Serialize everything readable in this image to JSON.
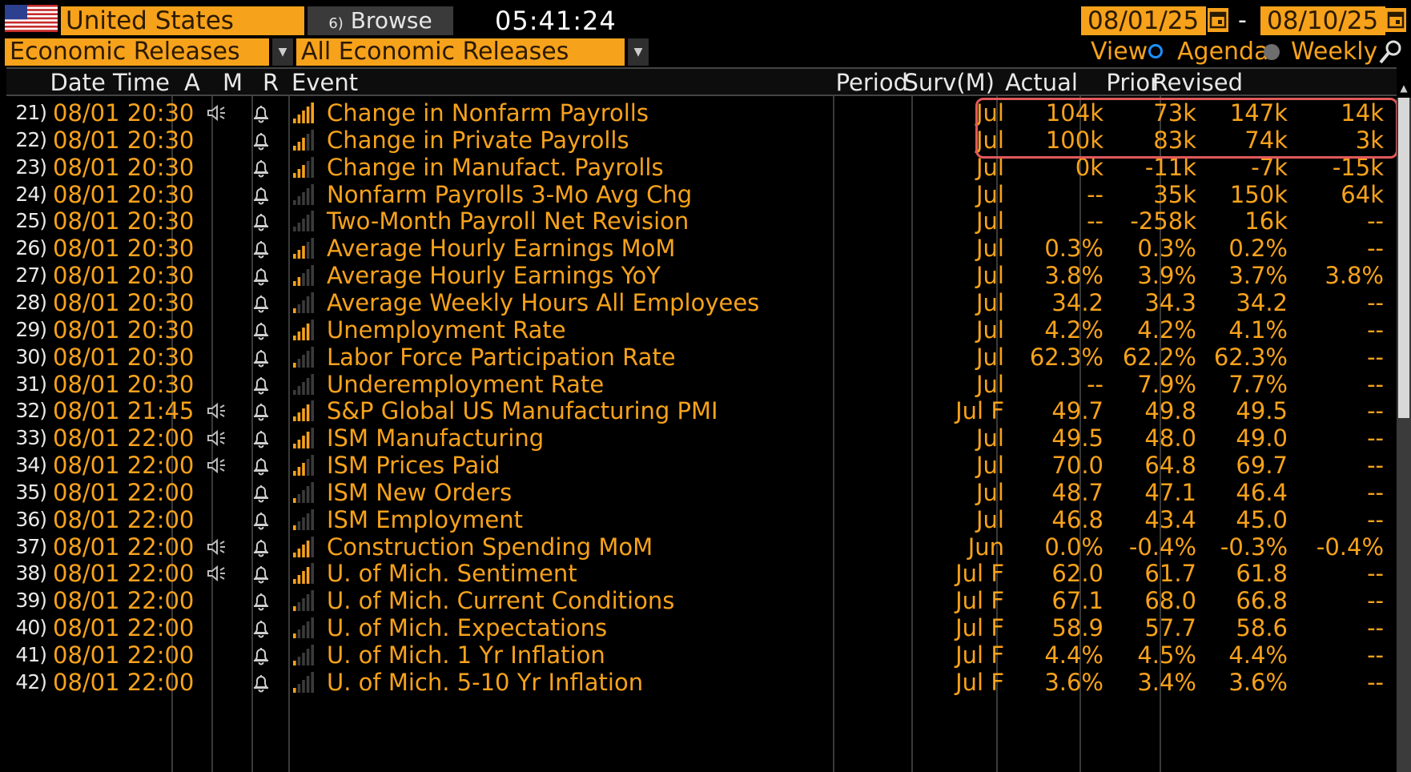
{
  "topbar": {
    "country": "United States",
    "browse_label": "⁠Browse",
    "browse_prefix": "6)",
    "clock": "05:41:24",
    "date_from": "08/01/25",
    "date_sep": "-",
    "date_to": "08/10/25"
  },
  "filters": {
    "category": "Economic Releases",
    "subcategory": "All Economic Releases",
    "view_label": "View",
    "agenda_label": "Agenda",
    "weekly_label": "Weekly",
    "selected_view": "Agenda"
  },
  "columns": {
    "datetime": "Date Time",
    "a": "A",
    "m": "M",
    "r": "R",
    "event": "Event",
    "period": "Period",
    "survey": "Surv(M)",
    "actual": "Actual",
    "prior": "Prior",
    "revised": "Revised"
  },
  "colors": {
    "accent": "#f7a21b",
    "highlight_box": "#e2595b",
    "background": "#000000"
  },
  "rows": [
    {
      "num": "21)",
      "dt": "08/01 20:30",
      "audio": true,
      "rel": 5,
      "event": "Change in Nonfarm Payrolls",
      "period": "Jul",
      "surv": "104k",
      "actual": "73k",
      "prior": "147k",
      "revised": "14k"
    },
    {
      "num": "22)",
      "dt": "08/01 20:30",
      "audio": false,
      "rel": 3,
      "event": "Change in Private Payrolls",
      "period": "Jul",
      "surv": "100k",
      "actual": "83k",
      "prior": "74k",
      "revised": "3k"
    },
    {
      "num": "23)",
      "dt": "08/01 20:30",
      "audio": false,
      "rel": 3,
      "event": "Change in Manufact. Payrolls",
      "period": "Jul",
      "surv": "0k",
      "actual": "-11k",
      "prior": "-7k",
      "revised": "-15k"
    },
    {
      "num": "24)",
      "dt": "08/01 20:30",
      "audio": false,
      "rel": 0,
      "event": "Nonfarm Payrolls 3-Mo Avg Chg",
      "period": "Jul",
      "surv": "--",
      "actual": "35k",
      "prior": "150k",
      "revised": "64k"
    },
    {
      "num": "25)",
      "dt": "08/01 20:30",
      "audio": false,
      "rel": 0,
      "event": "Two-Month Payroll Net Revision",
      "period": "Jul",
      "surv": "--",
      "actual": "-258k",
      "prior": "16k",
      "revised": "--"
    },
    {
      "num": "26)",
      "dt": "08/01 20:30",
      "audio": false,
      "rel": 3,
      "event": "Average Hourly Earnings MoM",
      "period": "Jul",
      "surv": "0.3%",
      "actual": "0.3%",
      "prior": "0.2%",
      "revised": "--"
    },
    {
      "num": "27)",
      "dt": "08/01 20:30",
      "audio": false,
      "rel": 2,
      "event": "Average Hourly Earnings YoY",
      "period": "Jul",
      "surv": "3.8%",
      "actual": "3.9%",
      "prior": "3.7%",
      "revised": "3.8%"
    },
    {
      "num": "28)",
      "dt": "08/01 20:30",
      "audio": false,
      "rel": 1,
      "event": "Average Weekly Hours All Employees",
      "period": "Jul",
      "surv": "34.2",
      "actual": "34.3",
      "prior": "34.2",
      "revised": "--"
    },
    {
      "num": "29)",
      "dt": "08/01 20:30",
      "audio": false,
      "rel": 4,
      "event": "Unemployment Rate",
      "period": "Jul",
      "surv": "4.2%",
      "actual": "4.2%",
      "prior": "4.1%",
      "revised": "--"
    },
    {
      "num": "30)",
      "dt": "08/01 20:30",
      "audio": false,
      "rel": 1,
      "event": "Labor Force Participation Rate",
      "period": "Jul",
      "surv": "62.3%",
      "actual": "62.2%",
      "prior": "62.3%",
      "revised": "--"
    },
    {
      "num": "31)",
      "dt": "08/01 20:30",
      "audio": false,
      "rel": 0,
      "event": "Underemployment Rate",
      "period": "Jul",
      "surv": "--",
      "actual": "7.9%",
      "prior": "7.7%",
      "revised": "--"
    },
    {
      "num": "32)",
      "dt": "08/01 21:45",
      "audio": true,
      "rel": 4,
      "event": "S&P Global US Manufacturing PMI",
      "period": "Jul F",
      "surv": "49.7",
      "actual": "49.8",
      "prior": "49.5",
      "revised": "--"
    },
    {
      "num": "33)",
      "dt": "08/01 22:00",
      "audio": true,
      "rel": 4,
      "event": "ISM Manufacturing",
      "period": "Jul",
      "surv": "49.5",
      "actual": "48.0",
      "prior": "49.0",
      "revised": "--"
    },
    {
      "num": "34)",
      "dt": "08/01 22:00",
      "audio": true,
      "rel": 3,
      "event": "ISM Prices Paid",
      "period": "Jul",
      "surv": "70.0",
      "actual": "64.8",
      "prior": "69.7",
      "revised": "--"
    },
    {
      "num": "35)",
      "dt": "08/01 22:00",
      "audio": false,
      "rel": 1,
      "event": "ISM New Orders",
      "period": "Jul",
      "surv": "48.7",
      "actual": "47.1",
      "prior": "46.4",
      "revised": "--"
    },
    {
      "num": "36)",
      "dt": "08/01 22:00",
      "audio": false,
      "rel": 1,
      "event": "ISM Employment",
      "period": "Jul",
      "surv": "46.8",
      "actual": "43.4",
      "prior": "45.0",
      "revised": "--"
    },
    {
      "num": "37)",
      "dt": "08/01 22:00",
      "audio": true,
      "rel": 4,
      "event": "Construction Spending MoM",
      "period": "Jun",
      "surv": "0.0%",
      "actual": "-0.4%",
      "prior": "-0.3%",
      "revised": "-0.4%"
    },
    {
      "num": "38)",
      "dt": "08/01 22:00",
      "audio": true,
      "rel": 4,
      "event": "U. of Mich. Sentiment",
      "period": "Jul F",
      "surv": "62.0",
      "actual": "61.7",
      "prior": "61.8",
      "revised": "--"
    },
    {
      "num": "39)",
      "dt": "08/01 22:00",
      "audio": false,
      "rel": 1,
      "event": "U. of Mich. Current Conditions",
      "period": "Jul F",
      "surv": "67.1",
      "actual": "68.0",
      "prior": "66.8",
      "revised": "--"
    },
    {
      "num": "40)",
      "dt": "08/01 22:00",
      "audio": false,
      "rel": 1,
      "event": "U. of Mich. Expectations",
      "period": "Jul F",
      "surv": "58.9",
      "actual": "57.7",
      "prior": "58.6",
      "revised": "--"
    },
    {
      "num": "41)",
      "dt": "08/01 22:00",
      "audio": false,
      "rel": 1,
      "event": "U. of Mich. 1 Yr Inflation",
      "period": "Jul F",
      "surv": "4.4%",
      "actual": "4.5%",
      "prior": "4.4%",
      "revised": "--"
    },
    {
      "num": "42)",
      "dt": "08/01 22:00",
      "audio": false,
      "rel": 1,
      "event": "U. of Mich. 5-10 Yr Inflation",
      "period": "Jul F",
      "surv": "3.6%",
      "actual": "3.4%",
      "prior": "3.6%",
      "revised": "--"
    }
  ]
}
